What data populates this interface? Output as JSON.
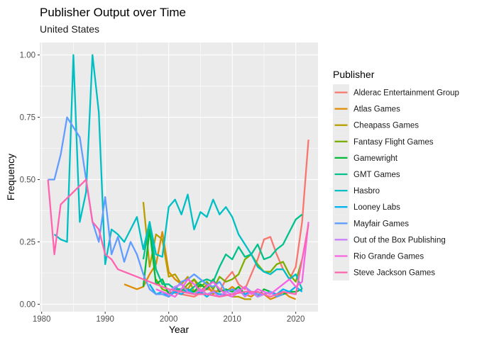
{
  "chart_data": {
    "type": "line",
    "title": "Publisher Output over Time",
    "subtitle": "United States",
    "xlabel": "Year",
    "ylabel": "Frequency",
    "xlim": [
      1979.7,
      2023.5
    ],
    "ylim": [
      -0.03,
      1.05
    ],
    "xticks": [
      1980,
      1990,
      2000,
      2010,
      2020
    ],
    "yticks": [
      0.0,
      0.25,
      0.5,
      0.75,
      1.0
    ],
    "ytick_labels": [
      "0.00",
      "0.25",
      "0.50",
      "0.75",
      "1.00"
    ],
    "grid": true,
    "legend_title": "Publisher",
    "legend_position": "right",
    "series": [
      {
        "name": "Alderac Entertainment Group",
        "color": "#F8766D",
        "x": [
          2000,
          2002,
          2004,
          2006,
          2008,
          2009,
          2010,
          2011,
          2012,
          2013,
          2014,
          2015,
          2016,
          2017,
          2018,
          2019,
          2020,
          2021,
          2022
        ],
        "y": [
          0.05,
          0.04,
          0.03,
          0.06,
          0.05,
          0.1,
          0.13,
          0.08,
          0.06,
          0.12,
          0.18,
          0.26,
          0.27,
          0.2,
          0.14,
          0.1,
          0.15,
          0.33,
          0.66
        ]
      },
      {
        "name": "Atlas Games",
        "color": "#DE8C00",
        "x": [
          1993,
          1995,
          1996,
          1997,
          1998,
          1999,
          2000,
          2001,
          2002,
          2003,
          2004,
          2005,
          2006,
          2007,
          2008,
          2009,
          2010,
          2011,
          2012,
          2013,
          2014,
          2015,
          2016,
          2017,
          2018,
          2019,
          2020
        ],
        "y": [
          0.08,
          0.06,
          0.07,
          0.12,
          0.16,
          0.29,
          0.13,
          0.1,
          0.08,
          0.06,
          0.1,
          0.05,
          0.08,
          0.04,
          0.06,
          0.05,
          0.07,
          0.05,
          0.04,
          0.03,
          0.05,
          0.04,
          0.02,
          0.03,
          0.05,
          0.03,
          0.02
        ]
      },
      {
        "name": "Cheapass Games",
        "color": "#B79F00",
        "x": [
          1996,
          1997,
          1998,
          1999,
          2000,
          2001,
          2002,
          2003,
          2004,
          2005,
          2006,
          2007,
          2008,
          2009,
          2010,
          2011,
          2012,
          2013
        ],
        "y": [
          0.41,
          0.15,
          0.28,
          0.26,
          0.11,
          0.12,
          0.08,
          0.11,
          0.05,
          0.06,
          0.04,
          0.05,
          0.03,
          0.04,
          0.03,
          0.03,
          0.02,
          0.02
        ]
      },
      {
        "name": "Fantasy Flight Games",
        "color": "#7CAE00",
        "x": [
          1998,
          1999,
          2000,
          2001,
          2002,
          2003,
          2004,
          2005,
          2006,
          2007,
          2008,
          2009,
          2010,
          2011,
          2012,
          2013,
          2014,
          2015,
          2016,
          2017,
          2018,
          2019,
          2020,
          2021
        ],
        "y": [
          0.1,
          0.06,
          0.05,
          0.07,
          0.05,
          0.08,
          0.1,
          0.07,
          0.09,
          0.06,
          0.11,
          0.09,
          0.1,
          0.12,
          0.18,
          0.2,
          0.16,
          0.13,
          0.13,
          0.16,
          0.17,
          0.12,
          0.09,
          0.18
        ]
      },
      {
        "name": "Gamewright",
        "color": "#00BA38",
        "x": [
          1996,
          1997,
          1998,
          1999,
          2000,
          2001,
          2002,
          2003,
          2004,
          2005,
          2006,
          2007,
          2008,
          2009,
          2010,
          2011,
          2012,
          2013,
          2014,
          2015,
          2016,
          2017,
          2018,
          2019,
          2020,
          2021
        ],
        "y": [
          0.07,
          0.3,
          0.08,
          0.1,
          0.04,
          0.05,
          0.04,
          0.06,
          0.05,
          0.08,
          0.06,
          0.1,
          0.05,
          0.06,
          0.05,
          0.07,
          0.04,
          0.05,
          0.03,
          0.06,
          0.05,
          0.03,
          0.04,
          0.05,
          0.05,
          0.06
        ]
      },
      {
        "name": "GMT Games",
        "color": "#00C08B",
        "x": [
          1996,
          1997,
          1998,
          1999,
          2000,
          2001,
          2002,
          2003,
          2004,
          2005,
          2006,
          2007,
          2008,
          2009,
          2010,
          2011,
          2012,
          2013,
          2014,
          2015,
          2016,
          2017,
          2018,
          2019,
          2020,
          2021
        ],
        "y": [
          0.18,
          0.33,
          0.14,
          0.08,
          0.08,
          0.06,
          0.06,
          0.05,
          0.07,
          0.09,
          0.1,
          0.09,
          0.15,
          0.2,
          0.18,
          0.23,
          0.19,
          0.2,
          0.24,
          0.18,
          0.19,
          0.22,
          0.24,
          0.29,
          0.34,
          0.36
        ]
      },
      {
        "name": "Hasbro",
        "color": "#00BFC4",
        "x": [
          1982,
          1983,
          1984,
          1985,
          1986,
          1987,
          1988,
          1989,
          1990,
          1991,
          1992,
          1993,
          1994,
          1995,
          1996,
          1997,
          1998,
          1999,
          2000,
          2001,
          2002,
          2003,
          2004,
          2005,
          2006,
          2007,
          2008,
          2009,
          2010,
          2011,
          2012,
          2013,
          2014,
          2015,
          2016,
          2017,
          2018,
          2019,
          2020,
          2021
        ],
        "y": [
          0.28,
          0.26,
          0.25,
          1.0,
          0.33,
          0.45,
          1.0,
          0.77,
          0.16,
          0.3,
          0.28,
          0.25,
          0.3,
          0.35,
          0.22,
          0.33,
          0.2,
          0.19,
          0.39,
          0.42,
          0.36,
          0.44,
          0.3,
          0.37,
          0.35,
          0.42,
          0.36,
          0.39,
          0.35,
          0.28,
          0.24,
          0.2,
          0.15,
          0.13,
          0.12,
          0.14,
          0.14,
          0.1,
          0.12,
          0.06
        ]
      },
      {
        "name": "Looney Labs",
        "color": "#00B4F0",
        "x": [
          1997,
          1998,
          1999,
          2000,
          2001,
          2002,
          2003,
          2004,
          2005,
          2006,
          2007,
          2008,
          2009,
          2010,
          2011,
          2012,
          2013,
          2014,
          2015,
          2016,
          2017,
          2018,
          2019,
          2020,
          2021
        ],
        "y": [
          0.08,
          0.04,
          0.05,
          0.03,
          0.05,
          0.04,
          0.06,
          0.04,
          0.05,
          0.03,
          0.05,
          0.04,
          0.04,
          0.03,
          0.05,
          0.04,
          0.05,
          0.03,
          0.04,
          0.05,
          0.04,
          0.06,
          0.05,
          0.07,
          0.05
        ]
      },
      {
        "name": "Mayfair Games",
        "color": "#619CFF",
        "x": [
          1981,
          1982,
          1983,
          1984,
          1985,
          1986,
          1987,
          1988,
          1989,
          1990,
          1991,
          1992,
          1993,
          1994,
          1995,
          1996,
          1997,
          1998,
          1999,
          2000,
          2001,
          2002,
          2003,
          2004,
          2005,
          2006,
          2007,
          2008,
          2009,
          2010,
          2011,
          2012,
          2013,
          2014,
          2015,
          2016,
          2017,
          2018
        ],
        "y": [
          0.5,
          0.5,
          0.6,
          0.75,
          0.71,
          0.67,
          0.5,
          0.33,
          0.25,
          0.43,
          0.2,
          0.27,
          0.17,
          0.25,
          0.2,
          0.12,
          0.06,
          0.04,
          0.04,
          0.03,
          0.06,
          0.09,
          0.1,
          0.12,
          0.1,
          0.08,
          0.07,
          0.09,
          0.05,
          0.06,
          0.05,
          0.07,
          0.05,
          0.04,
          0.04,
          0.05,
          0.03,
          0.04
        ]
      },
      {
        "name": "Out of the Box Publishing",
        "color": "#C77CFF",
        "x": [
          2000,
          2001,
          2002,
          2003,
          2004,
          2005,
          2006,
          2007,
          2008,
          2009,
          2010,
          2011,
          2012,
          2013,
          2014,
          2015
        ],
        "y": [
          0.05,
          0.07,
          0.08,
          0.05,
          0.04,
          0.06,
          0.04,
          0.05,
          0.03,
          0.05,
          0.04,
          0.06,
          0.03,
          0.05,
          0.03,
          0.04
        ]
      },
      {
        "name": "Rio Grande Games",
        "color": "#F564E3",
        "x": [
          1998,
          1999,
          2000,
          2001,
          2002,
          2003,
          2004,
          2005,
          2006,
          2007,
          2008,
          2009,
          2010,
          2011,
          2012,
          2013,
          2014,
          2015,
          2016,
          2017,
          2018,
          2019,
          2020,
          2021,
          2022
        ],
        "y": [
          0.06,
          0.05,
          0.04,
          0.03,
          0.06,
          0.1,
          0.08,
          0.05,
          0.07,
          0.09,
          0.06,
          0.04,
          0.03,
          0.05,
          0.07,
          0.04,
          0.06,
          0.05,
          0.04,
          0.06,
          0.08,
          0.1,
          0.07,
          0.09,
          0.33
        ]
      },
      {
        "name": "Steve Jackson Games",
        "color": "#FF64B0",
        "x": [
          1981,
          1982,
          1983,
          1987,
          1988,
          1989,
          1990,
          1991,
          1992,
          1994,
          1996,
          1998,
          2000,
          2002,
          2004,
          2006,
          2008,
          2010,
          2012,
          2014,
          2016,
          2018,
          2020,
          2022
        ],
        "y": [
          0.5,
          0.2,
          0.4,
          0.5,
          0.33,
          0.3,
          0.2,
          0.18,
          0.14,
          0.12,
          0.1,
          0.08,
          0.06,
          0.05,
          0.04,
          0.04,
          0.03,
          0.04,
          0.05,
          0.05,
          0.03,
          0.05,
          0.04,
          0.32
        ]
      }
    ]
  }
}
